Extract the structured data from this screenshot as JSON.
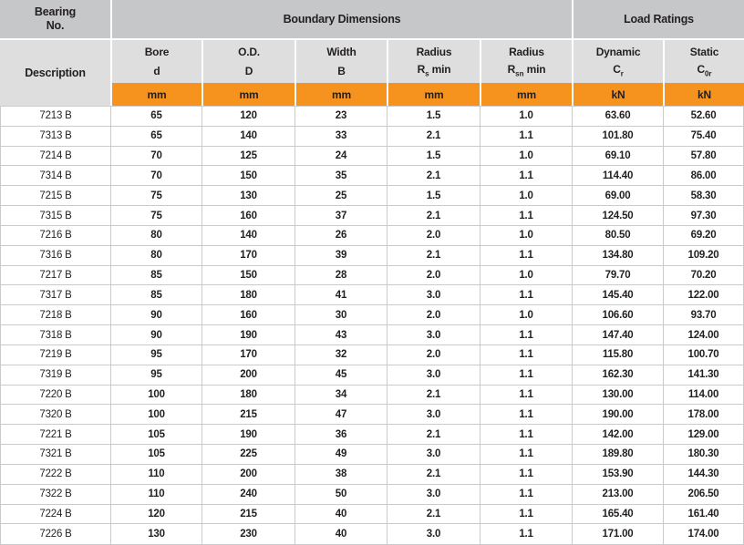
{
  "colors": {
    "header_gray": "#c6c7c8",
    "subheader_gray": "#dededf",
    "unit_orange": "#f6921e",
    "border_gray": "#cacbcc",
    "text": "#231f20"
  },
  "table": {
    "header": {
      "bearing_no_line1": "Bearing",
      "bearing_no_line2": "No.",
      "description": "Description",
      "boundary_dimensions": "Boundary Dimensions",
      "load_ratings": "Load Ratings"
    },
    "columns": [
      {
        "key": "bore",
        "name": "Bore",
        "symbol": {
          "base": "d"
        },
        "unit": "mm"
      },
      {
        "key": "od",
        "name": "O.D.",
        "symbol": {
          "base": "D"
        },
        "unit": "mm"
      },
      {
        "key": "width",
        "name": "Width",
        "symbol": {
          "base": "B"
        },
        "unit": "mm"
      },
      {
        "key": "radius-s",
        "name": "Radius",
        "symbol": {
          "base": "R",
          "sub": "s",
          "after": " min"
        },
        "unit": "mm"
      },
      {
        "key": "radius-sn",
        "name": "Radius",
        "symbol": {
          "base": "R",
          "sub": "sn",
          "after": " min"
        },
        "unit": "mm"
      },
      {
        "key": "dynamic",
        "name": "Dynamic",
        "symbol": {
          "base": "C",
          "sub": "r"
        },
        "unit": "kN"
      },
      {
        "key": "static",
        "name": "Static",
        "symbol": {
          "base": "C",
          "sub": "0r"
        },
        "unit": "kN"
      }
    ],
    "rows": [
      {
        "description": "7213 B",
        "values": [
          "65",
          "120",
          "23",
          "1.5",
          "1.0",
          "63.60",
          "52.60"
        ]
      },
      {
        "description": "7313 B",
        "values": [
          "65",
          "140",
          "33",
          "2.1",
          "1.1",
          "101.80",
          "75.40"
        ]
      },
      {
        "description": "7214 B",
        "values": [
          "70",
          "125",
          "24",
          "1.5",
          "1.0",
          "69.10",
          "57.80"
        ]
      },
      {
        "description": "7314 B",
        "values": [
          "70",
          "150",
          "35",
          "2.1",
          "1.1",
          "114.40",
          "86.00"
        ]
      },
      {
        "description": "7215 B",
        "values": [
          "75",
          "130",
          "25",
          "1.5",
          "1.0",
          "69.00",
          "58.30"
        ]
      },
      {
        "description": "7315 B",
        "values": [
          "75",
          "160",
          "37",
          "2.1",
          "1.1",
          "124.50",
          "97.30"
        ]
      },
      {
        "description": "7216 B",
        "values": [
          "80",
          "140",
          "26",
          "2.0",
          "1.0",
          "80.50",
          "69.20"
        ]
      },
      {
        "description": "7316 B",
        "values": [
          "80",
          "170",
          "39",
          "2.1",
          "1.1",
          "134.80",
          "109.20"
        ]
      },
      {
        "description": "7217 B",
        "values": [
          "85",
          "150",
          "28",
          "2.0",
          "1.0",
          "79.70",
          "70.20"
        ]
      },
      {
        "description": "7317 B",
        "values": [
          "85",
          "180",
          "41",
          "3.0",
          "1.1",
          "145.40",
          "122.00"
        ]
      },
      {
        "description": "7218 B",
        "values": [
          "90",
          "160",
          "30",
          "2.0",
          "1.0",
          "106.60",
          "93.70"
        ]
      },
      {
        "description": "7318 B",
        "values": [
          "90",
          "190",
          "43",
          "3.0",
          "1.1",
          "147.40",
          "124.00"
        ]
      },
      {
        "description": "7219 B",
        "values": [
          "95",
          "170",
          "32",
          "2.0",
          "1.1",
          "115.80",
          "100.70"
        ]
      },
      {
        "description": "7319 B",
        "values": [
          "95",
          "200",
          "45",
          "3.0",
          "1.1",
          "162.30",
          "141.30"
        ]
      },
      {
        "description": "7220 B",
        "values": [
          "100",
          "180",
          "34",
          "2.1",
          "1.1",
          "130.00",
          "114.00"
        ]
      },
      {
        "description": "7320 B",
        "values": [
          "100",
          "215",
          "47",
          "3.0",
          "1.1",
          "190.00",
          "178.00"
        ]
      },
      {
        "description": "7221 B",
        "values": [
          "105",
          "190",
          "36",
          "2.1",
          "1.1",
          "142.00",
          "129.00"
        ]
      },
      {
        "description": "7321 B",
        "values": [
          "105",
          "225",
          "49",
          "3.0",
          "1.1",
          "189.80",
          "180.30"
        ]
      },
      {
        "description": "7222 B",
        "values": [
          "110",
          "200",
          "38",
          "2.1",
          "1.1",
          "153.90",
          "144.30"
        ]
      },
      {
        "description": "7322 B",
        "values": [
          "110",
          "240",
          "50",
          "3.0",
          "1.1",
          "213.00",
          "206.50"
        ]
      },
      {
        "description": "7224 B",
        "values": [
          "120",
          "215",
          "40",
          "2.1",
          "1.1",
          "165.40",
          "161.40"
        ]
      },
      {
        "description": "7226 B",
        "values": [
          "130",
          "230",
          "40",
          "3.0",
          "1.1",
          "171.00",
          "174.00"
        ]
      }
    ]
  }
}
